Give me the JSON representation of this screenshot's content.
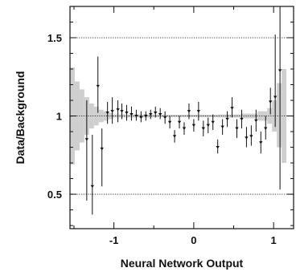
{
  "chart_data": {
    "type": "scatter",
    "xlabel": "Neural Network Output",
    "ylabel": "Data/Background",
    "xlim": [
      -1.55,
      1.25
    ],
    "ylim": [
      0.28,
      1.7
    ],
    "xticks": [
      {
        "value": -1,
        "label": "-1"
      },
      {
        "value": 0,
        "label": "0"
      },
      {
        "value": 1,
        "label": "1"
      }
    ],
    "yticks": [
      {
        "value": 0.5,
        "label": "0.5"
      },
      {
        "value": 1,
        "label": "1"
      },
      {
        "value": 1.5,
        "label": "1.5"
      }
    ],
    "reference_lines": [
      0.5,
      1.0,
      1.5
    ],
    "series": [
      {
        "points": [
          {
            "x": -1.34,
            "y": 0.85,
            "lo": 0.46,
            "hi": 1.1
          },
          {
            "x": -1.27,
            "y": 0.55,
            "lo": 0.37,
            "hi": 0.88
          },
          {
            "x": -1.2,
            "y": 1.19,
            "lo": 1.02,
            "hi": 1.38
          },
          {
            "x": -1.15,
            "y": 0.79,
            "lo": 0.55,
            "hi": 0.92
          },
          {
            "x": -1.08,
            "y": 1.02,
            "lo": 0.95,
            "hi": 1.09
          },
          {
            "x": -1.02,
            "y": 1.03,
            "lo": 0.95,
            "hi": 1.12
          },
          {
            "x": -0.95,
            "y": 1.04,
            "lo": 0.96,
            "hi": 1.1
          },
          {
            "x": -0.9,
            "y": 1.03,
            "lo": 0.98,
            "hi": 1.08
          },
          {
            "x": -0.84,
            "y": 1.02,
            "lo": 0.97,
            "hi": 1.07
          },
          {
            "x": -0.78,
            "y": 1.01,
            "lo": 0.97,
            "hi": 1.06
          },
          {
            "x": -0.72,
            "y": 1.0,
            "lo": 0.97,
            "hi": 1.04
          },
          {
            "x": -0.66,
            "y": 0.99,
            "lo": 0.96,
            "hi": 1.03
          },
          {
            "x": -0.6,
            "y": 1.0,
            "lo": 0.97,
            "hi": 1.03
          },
          {
            "x": -0.54,
            "y": 1.01,
            "lo": 0.98,
            "hi": 1.04
          },
          {
            "x": -0.48,
            "y": 1.02,
            "lo": 0.99,
            "hi": 1.06
          },
          {
            "x": -0.42,
            "y": 1.01,
            "lo": 0.98,
            "hi": 1.05
          },
          {
            "x": -0.36,
            "y": 0.99,
            "lo": 0.95,
            "hi": 1.03
          },
          {
            "x": -0.3,
            "y": 0.96,
            "lo": 0.92,
            "hi": 1.0
          },
          {
            "x": -0.24,
            "y": 0.87,
            "lo": 0.83,
            "hi": 0.91
          },
          {
            "x": -0.18,
            "y": 0.96,
            "lo": 0.92,
            "hi": 1.0
          },
          {
            "x": -0.12,
            "y": 0.92,
            "lo": 0.88,
            "hi": 0.96
          },
          {
            "x": -0.06,
            "y": 1.03,
            "lo": 0.98,
            "hi": 1.08
          },
          {
            "x": 0.0,
            "y": 0.94,
            "lo": 0.9,
            "hi": 0.98
          },
          {
            "x": 0.06,
            "y": 1.03,
            "lo": 0.97,
            "hi": 1.09
          },
          {
            "x": 0.12,
            "y": 0.92,
            "lo": 0.87,
            "hi": 0.97
          },
          {
            "x": 0.18,
            "y": 0.94,
            "lo": 0.89,
            "hi": 0.99
          },
          {
            "x": 0.24,
            "y": 0.96,
            "lo": 0.91,
            "hi": 1.01
          },
          {
            "x": 0.3,
            "y": 0.8,
            "lo": 0.76,
            "hi": 0.85
          },
          {
            "x": 0.36,
            "y": 0.93,
            "lo": 0.88,
            "hi": 0.98
          },
          {
            "x": 0.42,
            "y": 0.98,
            "lo": 0.93,
            "hi": 1.03
          },
          {
            "x": 0.48,
            "y": 1.05,
            "lo": 0.99,
            "hi": 1.12
          },
          {
            "x": 0.54,
            "y": 0.92,
            "lo": 0.86,
            "hi": 0.98
          },
          {
            "x": 0.6,
            "y": 0.98,
            "lo": 0.92,
            "hi": 1.04
          },
          {
            "x": 0.66,
            "y": 0.86,
            "lo": 0.8,
            "hi": 0.93
          },
          {
            "x": 0.72,
            "y": 0.87,
            "lo": 0.81,
            "hi": 0.94
          },
          {
            "x": 0.78,
            "y": 0.97,
            "lo": 0.9,
            "hi": 1.04
          },
          {
            "x": 0.84,
            "y": 0.83,
            "lo": 0.76,
            "hi": 0.9
          },
          {
            "x": 0.9,
            "y": 0.92,
            "lo": 0.85,
            "hi": 1.0
          },
          {
            "x": 0.96,
            "y": 1.09,
            "lo": 1.01,
            "hi": 1.18
          },
          {
            "x": 1.02,
            "y": 1.12,
            "lo": 0.93,
            "hi": 1.52
          },
          {
            "x": 1.08,
            "y": 1.29,
            "lo": 0.53,
            "hi": 1.72
          }
        ]
      }
    ],
    "uncertainty_band": [
      {
        "x0": -1.55,
        "x1": -1.49,
        "lo": 0.69,
        "hi": 1.31
      },
      {
        "x0": -1.49,
        "x1": -1.43,
        "lo": 0.78,
        "hi": 1.22
      },
      {
        "x0": -1.43,
        "x1": -1.37,
        "lo": 0.83,
        "hi": 1.17
      },
      {
        "x0": -1.37,
        "x1": -1.31,
        "lo": 0.88,
        "hi": 1.12
      },
      {
        "x0": -1.31,
        "x1": -1.25,
        "lo": 0.92,
        "hi": 1.08
      },
      {
        "x0": -1.25,
        "x1": -1.19,
        "lo": 0.94,
        "hi": 1.06
      },
      {
        "x0": -1.19,
        "x1": -1.13,
        "lo": 0.96,
        "hi": 1.04
      },
      {
        "x0": -1.13,
        "x1": -1.07,
        "lo": 0.97,
        "hi": 1.03
      },
      {
        "x0": -1.07,
        "x1": -1.01,
        "lo": 0.98,
        "hi": 1.02
      },
      {
        "x0": -1.01,
        "x1": -0.5,
        "lo": 0.99,
        "hi": 1.01
      },
      {
        "x0": -0.5,
        "x1": 0.3,
        "lo": 0.992,
        "hi": 1.008
      },
      {
        "x0": 0.3,
        "x1": 0.6,
        "lo": 0.99,
        "hi": 1.01
      },
      {
        "x0": 0.6,
        "x1": 0.8,
        "lo": 0.985,
        "hi": 1.015
      },
      {
        "x0": 0.8,
        "x1": 0.92,
        "lo": 0.97,
        "hi": 1.03
      },
      {
        "x0": 0.92,
        "x1": 0.98,
        "lo": 0.95,
        "hi": 1.05
      },
      {
        "x0": 0.98,
        "x1": 1.04,
        "lo": 0.9,
        "hi": 1.1
      },
      {
        "x0": 1.04,
        "x1": 1.1,
        "lo": 0.8,
        "hi": 1.21
      },
      {
        "x0": 1.1,
        "x1": 1.16,
        "lo": 0.7,
        "hi": 1.3
      }
    ],
    "grid": false,
    "legend": "none"
  }
}
